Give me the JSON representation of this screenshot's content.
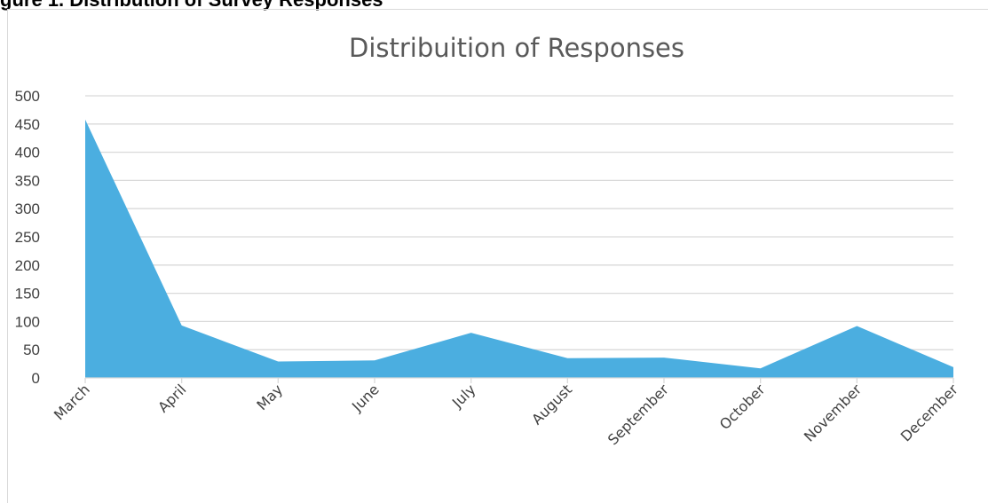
{
  "heading": "gure 1. Distribution of Survey Responses",
  "chart_data": {
    "type": "area",
    "title": "Distribuition of  Responses",
    "xlabel": "",
    "ylabel": "",
    "categories": [
      "March",
      "April",
      "May",
      "June",
      "July",
      "August",
      "September",
      "October",
      "November",
      "December"
    ],
    "values": [
      458,
      93,
      29,
      31,
      80,
      35,
      36,
      17,
      92,
      19
    ],
    "ylim": [
      0,
      500
    ],
    "yticks": [
      0,
      50,
      100,
      150,
      200,
      250,
      300,
      350,
      400,
      450,
      500
    ],
    "grid": true,
    "legend": "none",
    "fill_color": "#4baee0",
    "grid_color": "#d9d9d9"
  }
}
